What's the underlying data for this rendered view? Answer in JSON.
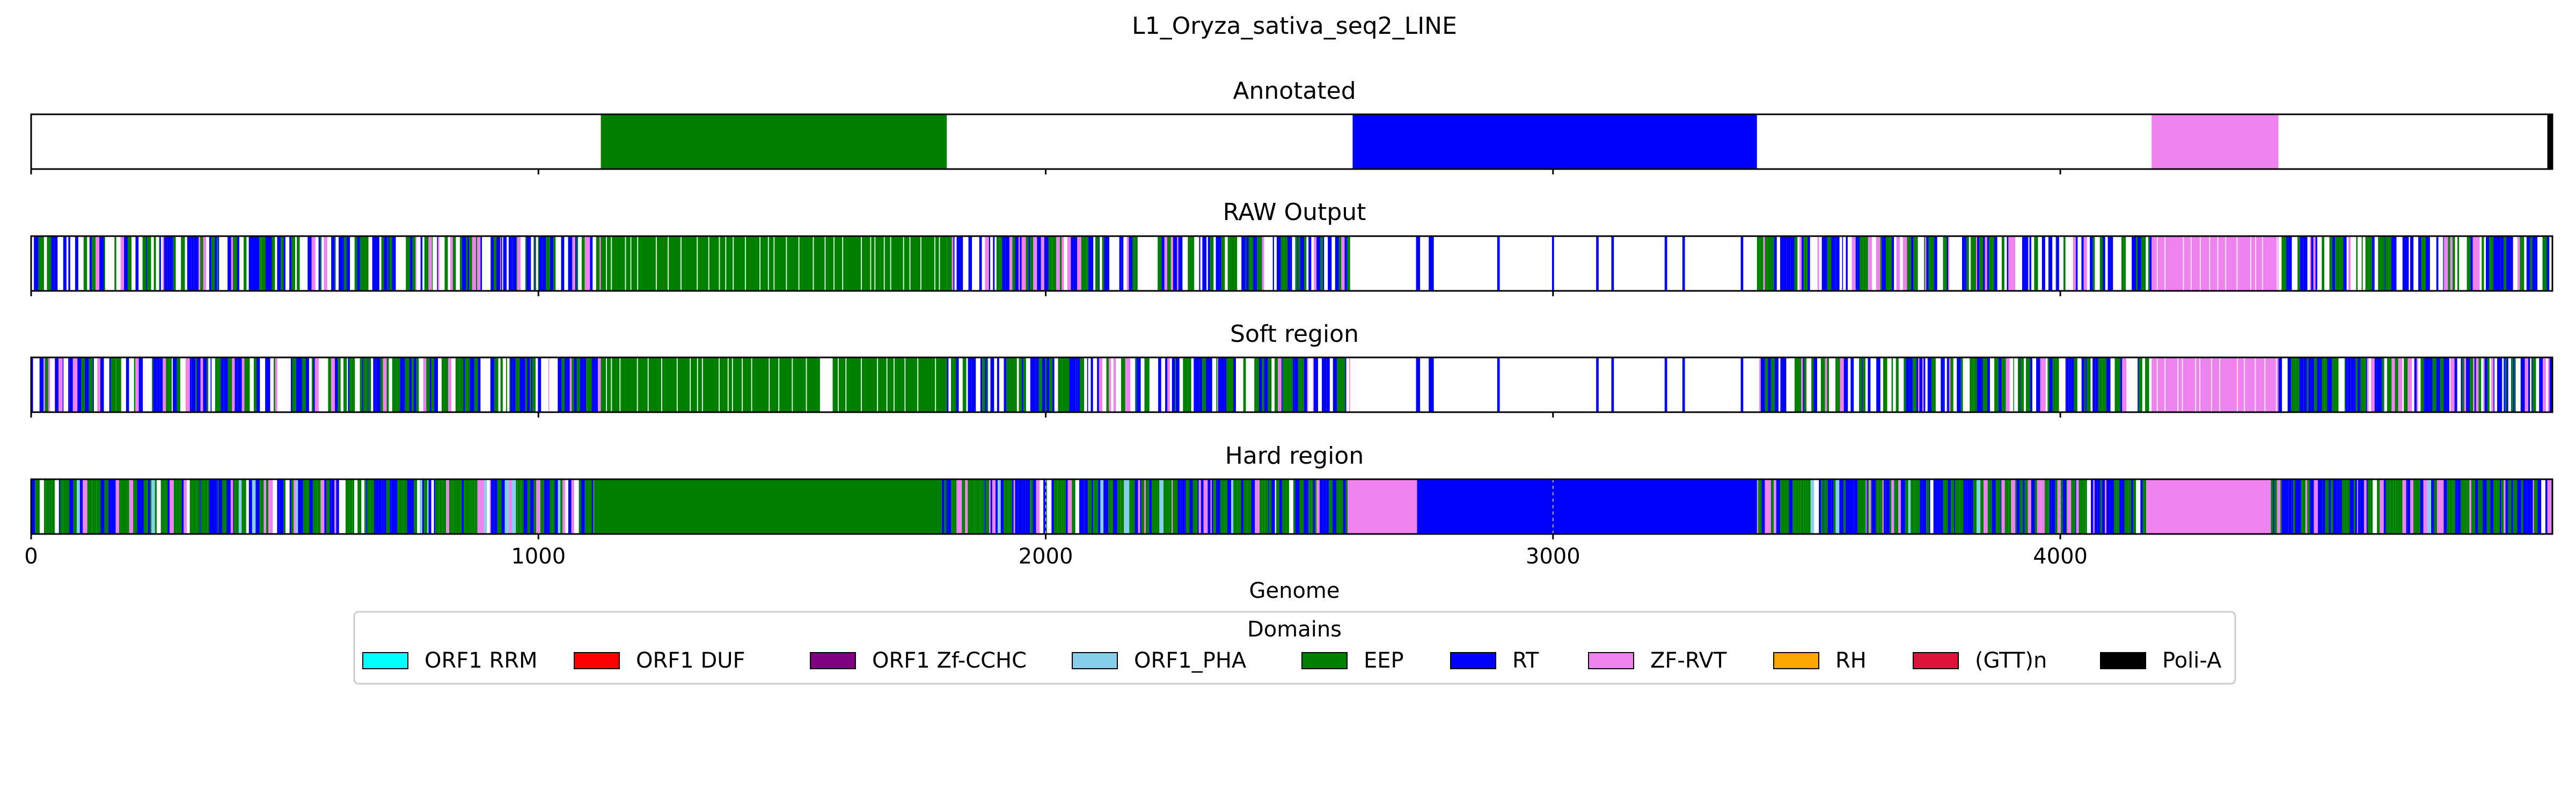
{
  "chart_data": {
    "type": "domain-track",
    "title": "L1_Oryza_sativa_seq2_LINE",
    "xlabel": "Genome",
    "xlim": [
      0,
      4970
    ],
    "xticks": [
      0,
      1000,
      2000,
      3000,
      4000
    ],
    "colors": {
      "ORF1 RRM": "#00ffff",
      "ORF1 DUF": "#ff0000",
      "ORF1 Zf-CCHC": "#800080",
      "ORF1_PHA": "#87ceeb",
      "EEP": "#008000",
      "RT": "#0000ff",
      "ZF-RVT": "#ee82ee",
      "RH": "#ffa500",
      "(GTT)n": "#dc143c",
      "Poli-A": "#000000"
    },
    "legend": {
      "title": "Domains",
      "placement": "below",
      "entries": [
        "ORF1 RRM",
        "ORF1 DUF",
        "ORF1 Zf-CCHC",
        "ORF1_PHA",
        "EEP",
        "RT",
        "ZF-RVT",
        "RH",
        "(GTT)n",
        "Poli-A"
      ]
    },
    "panels": [
      {
        "title": "Annotated",
        "segments": [
          {
            "start": 1123,
            "end": 1805,
            "domain": "EEP"
          },
          {
            "start": 2605,
            "end": 3402,
            "domain": "RT"
          },
          {
            "start": 4180,
            "end": 4430,
            "domain": "ZF-RVT"
          },
          {
            "start": 4960,
            "end": 4970,
            "domain": "Poli-A"
          }
        ]
      },
      {
        "title": "RAW Output",
        "segments": [
          {
            "start": 1123,
            "end": 1805,
            "domain": "EEP"
          },
          {
            "start": 4180,
            "end": 4430,
            "domain": "ZF-RVT"
          },
          {
            "start": 2730,
            "end": 2738,
            "domain": "RT"
          },
          {
            "start": 2755,
            "end": 2765,
            "domain": "RT"
          },
          {
            "start": 2890,
            "end": 2895,
            "domain": "RT"
          },
          {
            "start": 2998,
            "end": 3002,
            "domain": "RT"
          },
          {
            "start": 3085,
            "end": 3090,
            "domain": "RT"
          },
          {
            "start": 3115,
            "end": 3120,
            "domain": "RT"
          },
          {
            "start": 3220,
            "end": 3225,
            "domain": "RT"
          },
          {
            "start": 3255,
            "end": 3260,
            "domain": "RT"
          },
          {
            "start": 3370,
            "end": 3375,
            "domain": "RT"
          }
        ]
      },
      {
        "title": "Soft region",
        "segments": [
          {
            "start": 1123,
            "end": 1555,
            "domain": "EEP"
          },
          {
            "start": 1580,
            "end": 1805,
            "domain": "EEP"
          },
          {
            "start": 4180,
            "end": 4430,
            "domain": "ZF-RVT"
          },
          {
            "start": 2730,
            "end": 2738,
            "domain": "RT"
          },
          {
            "start": 2755,
            "end": 2765,
            "domain": "RT"
          },
          {
            "start": 2890,
            "end": 2895,
            "domain": "RT"
          },
          {
            "start": 3085,
            "end": 3090,
            "domain": "RT"
          },
          {
            "start": 3115,
            "end": 3120,
            "domain": "RT"
          },
          {
            "start": 3220,
            "end": 3225,
            "domain": "RT"
          },
          {
            "start": 3255,
            "end": 3260,
            "domain": "RT"
          },
          {
            "start": 3370,
            "end": 3375,
            "domain": "RT"
          }
        ]
      },
      {
        "title": "Hard region",
        "segments": [
          {
            "start": 1110,
            "end": 1795,
            "domain": "EEP"
          },
          {
            "start": 2595,
            "end": 2732,
            "domain": "ZF-RVT"
          },
          {
            "start": 2732,
            "end": 3402,
            "domain": "RT"
          },
          {
            "start": 4170,
            "end": 4415,
            "domain": "ZF-RVT"
          },
          {
            "start": 4960,
            "end": 4970,
            "domain": "ZF-RVT"
          }
        ]
      }
    ]
  }
}
